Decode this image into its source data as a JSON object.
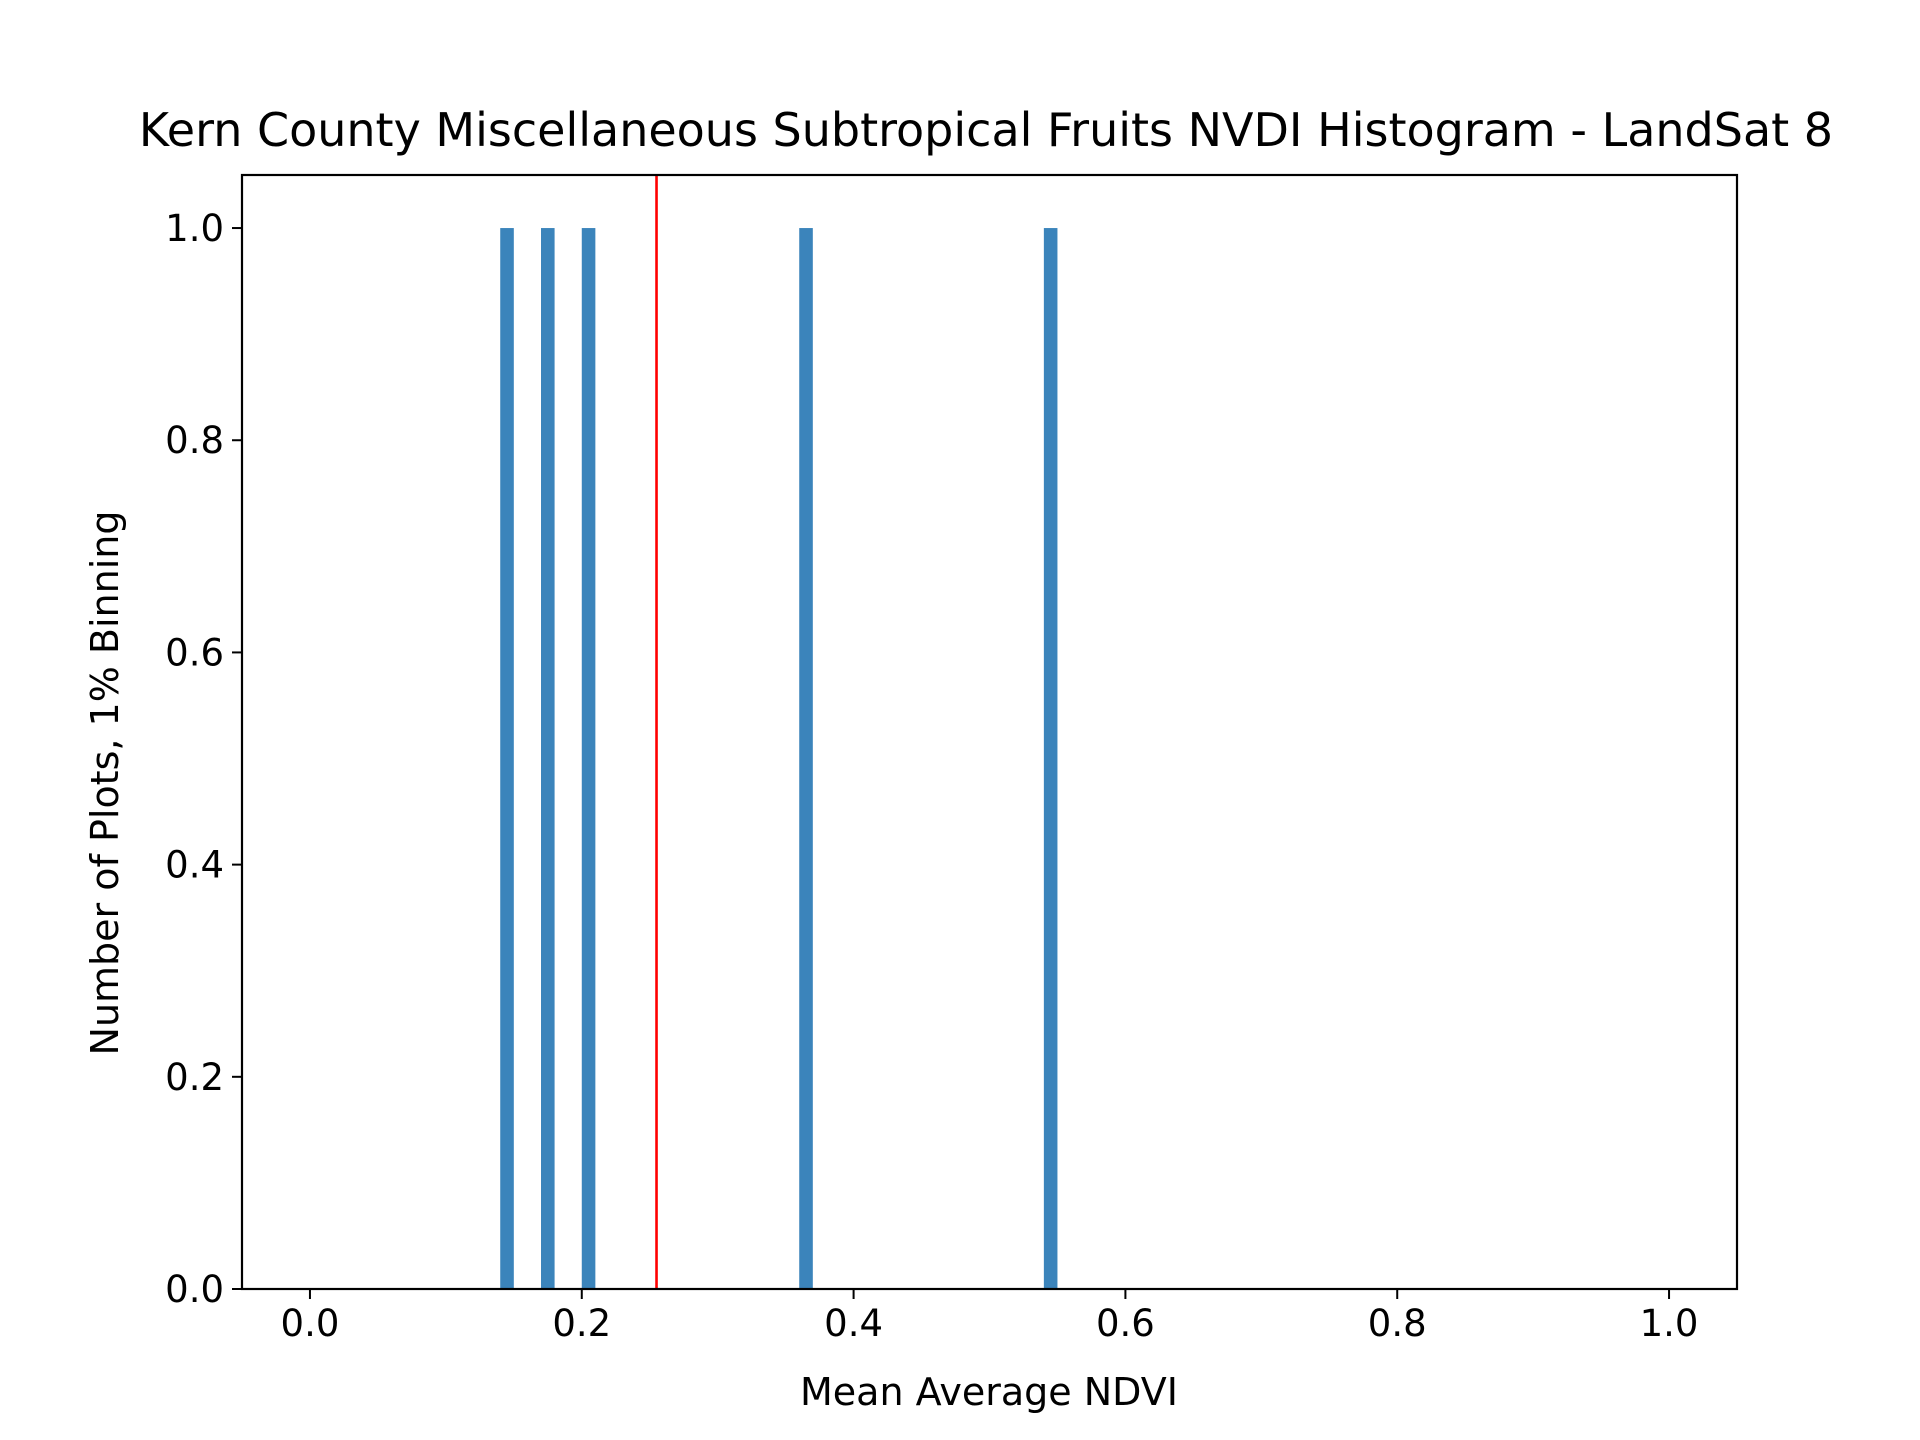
{
  "chart_data": {
    "type": "bar",
    "title": "Kern County Miscellaneous Subtropical Fruits NVDI Histogram - LandSat 8",
    "xlabel": "Mean Average NDVI",
    "ylabel": "Number of Plots, 1% Binning",
    "xlim": [
      -0.05,
      1.05
    ],
    "ylim": [
      0,
      1.05
    ],
    "xticks": [
      0.0,
      0.2,
      0.4,
      0.6,
      0.8,
      1.0
    ],
    "xtick_labels": [
      "0.0",
      "0.2",
      "0.4",
      "0.6",
      "0.8",
      "1.0"
    ],
    "yticks": [
      0.0,
      0.2,
      0.4,
      0.6,
      0.8,
      1.0
    ],
    "ytick_labels": [
      "0.0",
      "0.2",
      "0.4",
      "0.6",
      "0.8",
      "1.0"
    ],
    "bin_width": 0.01,
    "bars": [
      {
        "bin_start": 0.14,
        "count": 1
      },
      {
        "bin_start": 0.17,
        "count": 1
      },
      {
        "bin_start": 0.2,
        "count": 1
      },
      {
        "bin_start": 0.36,
        "count": 1
      },
      {
        "bin_start": 0.54,
        "count": 1
      }
    ],
    "reference_line": {
      "x": 0.255,
      "color": "#ff0000"
    },
    "bar_color": "#3b84bb",
    "grid": false,
    "legend": "none"
  }
}
